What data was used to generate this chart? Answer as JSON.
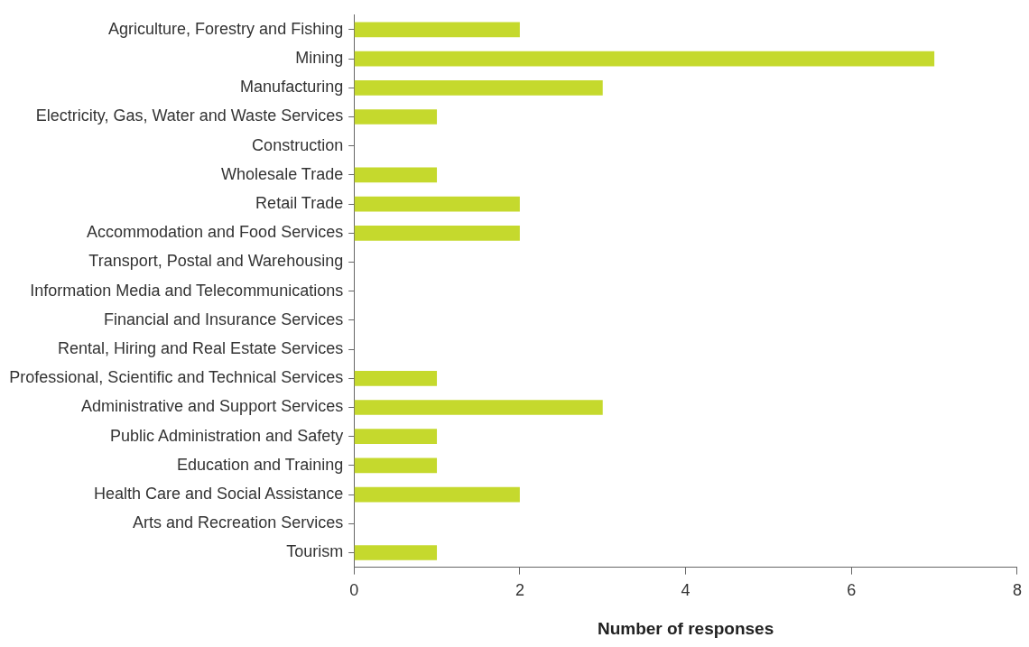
{
  "chart_data": {
    "type": "bar",
    "orientation": "horizontal",
    "xlabel": "Number of responses",
    "categories": [
      "Agriculture, Forestry and Fishing",
      "Mining",
      "Manufacturing",
      "Electricity, Gas, Water and Waste Services",
      "Construction",
      "Wholesale Trade",
      "Retail Trade",
      "Accommodation and Food Services",
      "Transport, Postal and Warehousing",
      "Information Media and Telecommunications",
      "Financial and Insurance Services",
      "Rental, Hiring and Real Estate Services",
      "Professional, Scientific and Technical Services",
      "Administrative and Support Services",
      "Public Administration and Safety",
      "Education and Training",
      "Health Care and Social Assistance",
      "Arts and Recreation Services",
      "Tourism"
    ],
    "values": [
      2,
      7,
      3,
      1,
      0,
      1,
      2,
      2,
      0,
      0,
      0,
      0,
      1,
      3,
      1,
      1,
      2,
      0,
      1
    ],
    "color": "#c5d92d",
    "xlim": [
      0,
      8
    ],
    "xticks": [
      0,
      2,
      4,
      6,
      8
    ],
    "grid": false,
    "legend": false
  }
}
